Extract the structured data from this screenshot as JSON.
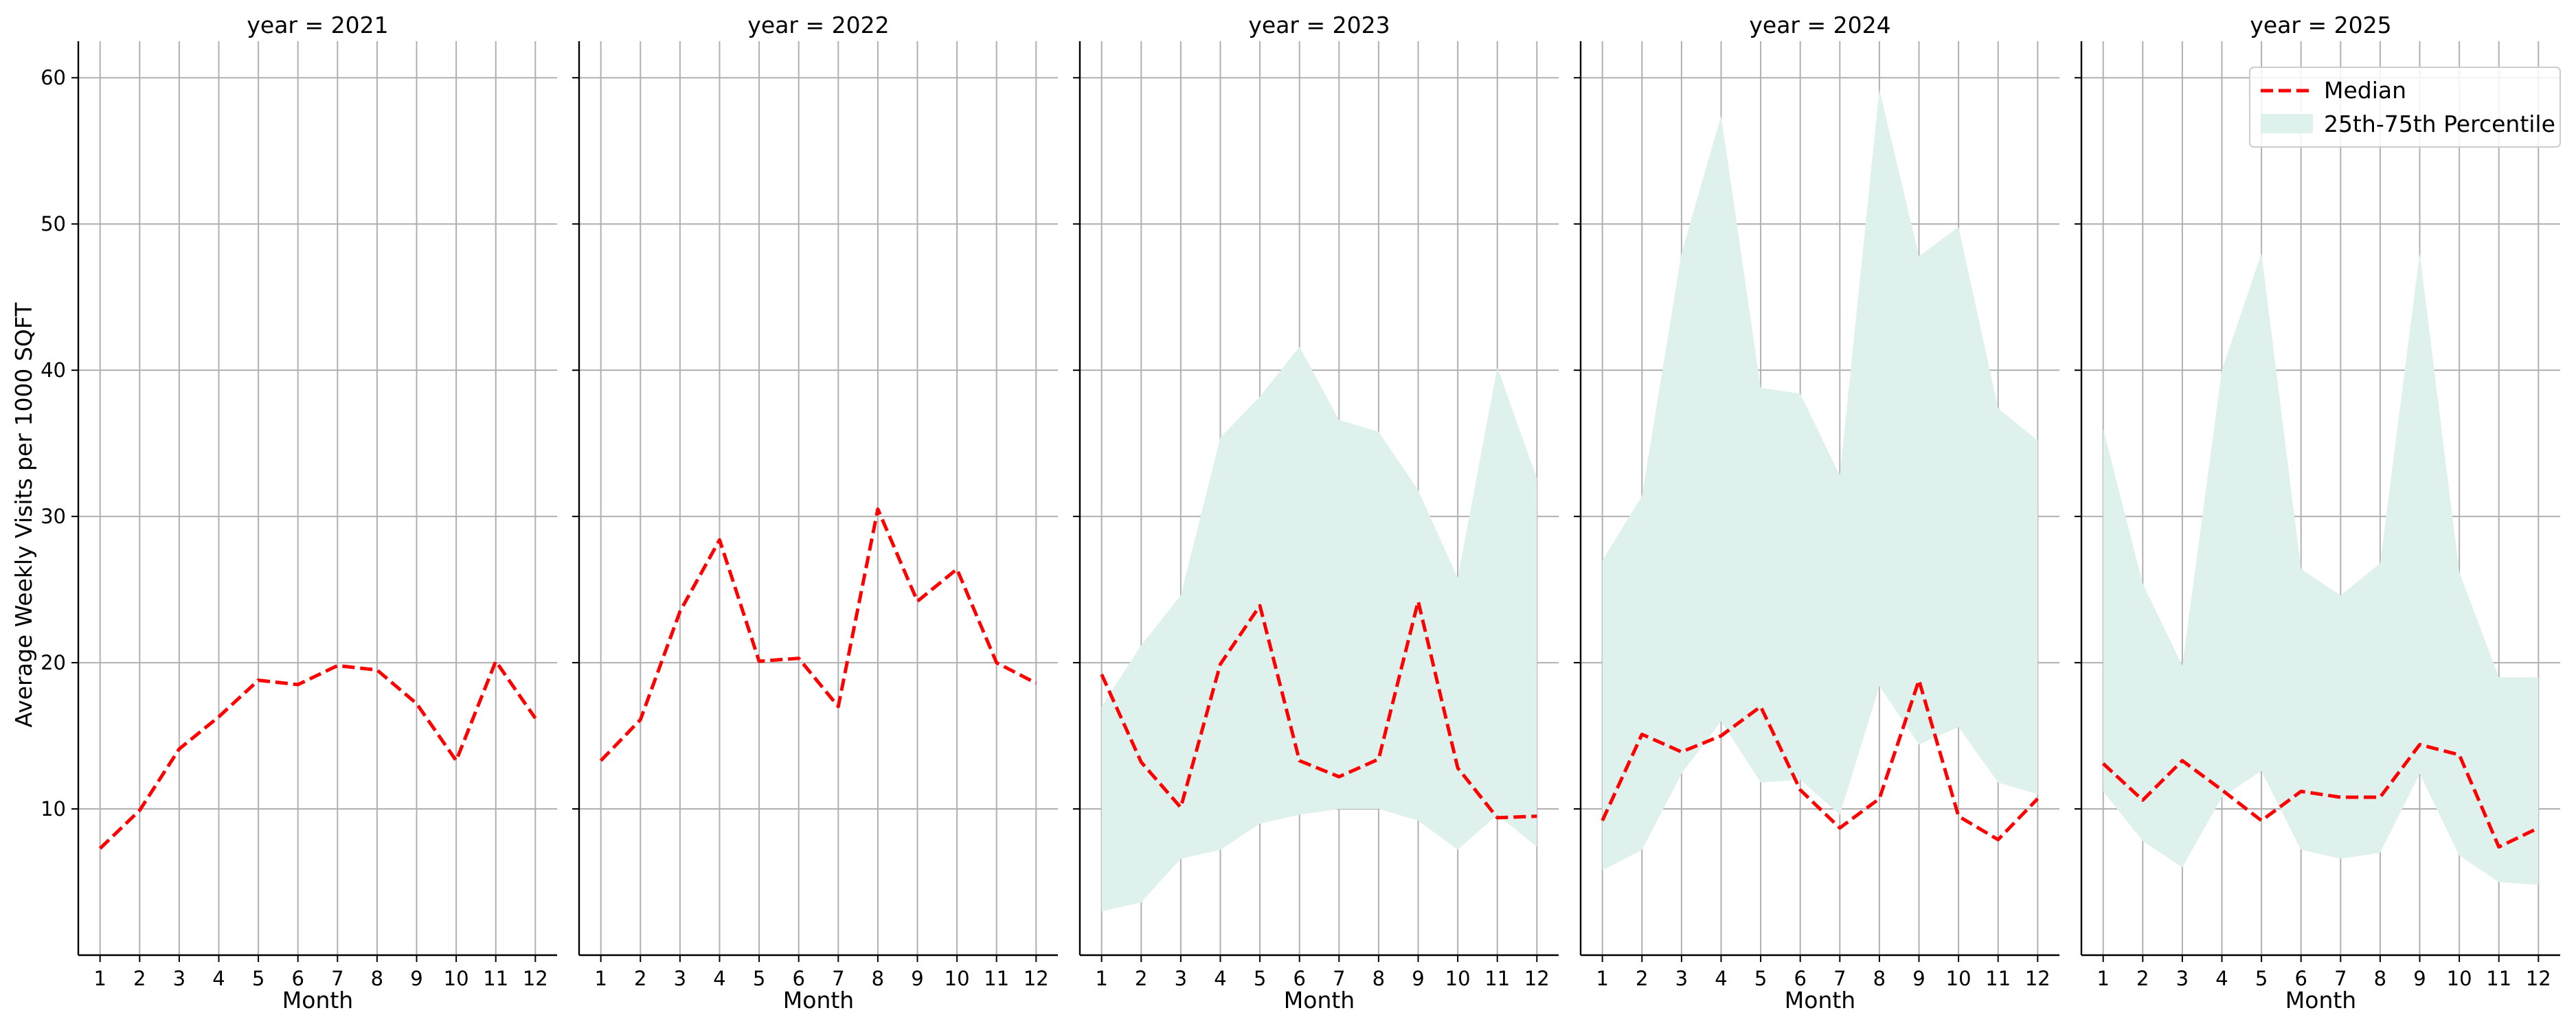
{
  "chart_data": {
    "type": "line",
    "ylabel": "Average Weekly Visits per 1000 SQFT",
    "xlabel": "Month",
    "x": [
      1,
      2,
      3,
      4,
      5,
      6,
      7,
      8,
      9,
      10,
      11,
      12
    ],
    "xticks": [
      "1",
      "2",
      "3",
      "4",
      "5",
      "6",
      "7",
      "8",
      "9",
      "10",
      "11",
      "12"
    ],
    "yticks": [
      "10",
      "20",
      "30",
      "40",
      "50",
      "60"
    ],
    "ylim": [
      0,
      62.5
    ],
    "xlim": [
      0.45,
      12.55
    ],
    "grid": true,
    "shared_y": true,
    "legend": {
      "position": "top-right",
      "panel": 4,
      "entries": [
        "Median",
        "25th-75th Percentile"
      ]
    },
    "colors": {
      "median": "#ff0000",
      "band": "#dff1ec",
      "grid": "#b0b0b0",
      "axis": "#000000"
    },
    "panels": [
      {
        "title": "year = 2021",
        "median": [
          7.3,
          9.9,
          14.1,
          16.3,
          18.8,
          18.5,
          19.8,
          19.5,
          17.2,
          13.3,
          20.1,
          16.2
        ],
        "p25": null,
        "p75": null
      },
      {
        "title": "year = 2022",
        "median": [
          13.3,
          16.1,
          23.5,
          28.4,
          20.1,
          20.3,
          17.0,
          30.5,
          24.2,
          26.4,
          20.0,
          18.6
        ],
        "p25": null,
        "p75": null
      },
      {
        "title": "year = 2023",
        "median": [
          19.2,
          13.2,
          10.1,
          19.9,
          23.9,
          13.3,
          12.2,
          13.4,
          24.2,
          12.8,
          9.4,
          9.5
        ],
        "p25": [
          3.0,
          3.6,
          6.6,
          7.2,
          9.0,
          9.6,
          10.0,
          10.0,
          9.2,
          7.2,
          9.6,
          7.4
        ],
        "p75": [
          17.0,
          21.2,
          24.6,
          35.4,
          38.2,
          41.6,
          36.6,
          35.8,
          31.8,
          25.8,
          40.2,
          32.6
        ]
      },
      {
        "title": "year = 2024",
        "median": [
          9.2,
          15.1,
          13.9,
          15.0,
          17.0,
          11.3,
          8.7,
          10.7,
          18.8,
          9.5,
          7.9,
          10.7
        ],
        "p25": [
          5.8,
          7.2,
          12.4,
          16.0,
          11.8,
          12.0,
          9.6,
          18.4,
          14.4,
          15.6,
          11.8,
          11.0
        ],
        "p75": [
          27.0,
          31.4,
          48.0,
          57.4,
          38.8,
          38.4,
          32.8,
          59.2,
          47.8,
          49.8,
          37.4,
          35.2
        ]
      },
      {
        "title": "year = 2025",
        "median": [
          13.1,
          10.6,
          13.3,
          11.3,
          9.2,
          11.2,
          10.8,
          10.8,
          14.4,
          13.7,
          7.4,
          8.7
        ],
        "p25": [
          11.2,
          7.8,
          6.0,
          10.8,
          12.6,
          7.2,
          6.6,
          7.0,
          12.4,
          6.8,
          5.0,
          4.8
        ],
        "p75": [
          36.0,
          25.4,
          19.8,
          40.0,
          48.0,
          26.4,
          24.6,
          26.8,
          48.0,
          26.2,
          19.0,
          19.0
        ]
      }
    ]
  }
}
